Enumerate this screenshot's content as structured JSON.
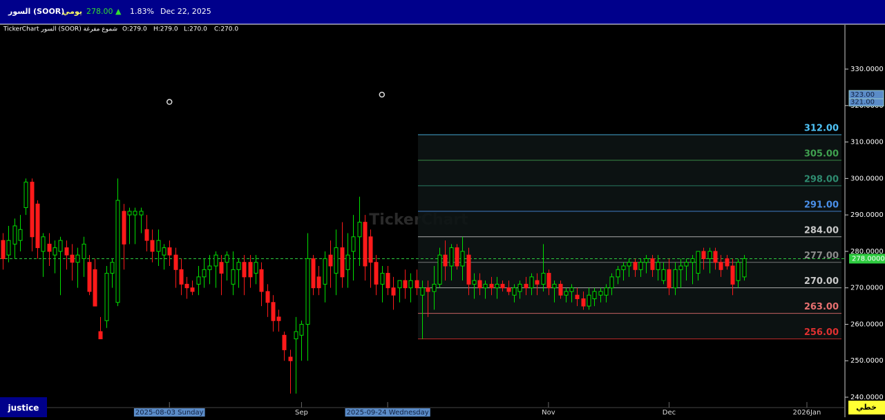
{
  "header": {
    "symbol": "السور (SOOR)",
    "period": "يومي",
    "price": "278.00",
    "change_icon": "▲",
    "change": "1.83%",
    "date": "Dec 22, 2025"
  },
  "legend": {
    "name": "TickerChart السور (SOOR) شموع مفرغة",
    "open": "O:279.0",
    "high": "H:279.0",
    "low": "L:270.0",
    "close": "C:270.0"
  },
  "toolbar": {
    "left": "justice",
    "right": "خطي"
  },
  "chart_data": {
    "type": "candlestick",
    "watermark": "TickerChart",
    "up_color": "#00e000",
    "down_color": "#ff1a1a",
    "ohlc": [
      [
        283,
        285,
        275,
        278
      ],
      [
        279,
        287,
        277,
        283
      ],
      [
        282,
        289,
        278,
        287
      ],
      [
        283,
        290,
        280,
        286
      ],
      [
        292,
        300,
        290,
        299
      ],
      [
        299,
        300,
        280,
        284
      ],
      [
        293,
        294,
        278,
        281
      ],
      [
        280,
        285,
        273,
        284
      ],
      [
        282,
        285,
        276,
        280
      ],
      [
        279,
        283,
        274,
        281
      ],
      [
        280,
        284,
        268,
        283
      ],
      [
        281,
        283,
        275,
        279
      ],
      [
        279,
        282,
        272,
        277
      ],
      [
        277,
        281,
        270,
        279
      ],
      [
        278,
        284,
        273,
        282
      ],
      [
        277,
        279,
        268,
        269
      ],
      [
        275,
        278,
        265,
        265
      ],
      [
        258,
        262,
        256,
        256
      ],
      [
        261,
        276,
        259,
        274
      ],
      [
        274,
        278,
        270,
        277
      ],
      [
        266,
        300,
        265,
        294
      ],
      [
        291,
        293,
        275,
        282
      ],
      [
        290,
        292,
        282,
        291
      ],
      [
        290,
        292,
        282,
        291
      ],
      [
        290,
        292,
        285,
        291
      ],
      [
        286,
        290,
        280,
        283
      ],
      [
        283,
        286,
        277,
        280
      ],
      [
        280,
        286,
        276,
        283
      ],
      [
        279,
        282,
        275,
        281
      ],
      [
        281,
        283,
        276,
        279
      ],
      [
        279,
        281,
        270,
        275
      ],
      [
        275,
        278,
        268,
        271
      ],
      [
        271,
        273,
        267,
        270
      ],
      [
        270,
        272,
        268,
        269
      ],
      [
        271,
        276,
        268,
        273
      ],
      [
        273,
        278,
        270,
        275
      ],
      [
        275,
        279,
        271,
        276
      ],
      [
        276,
        280,
        270,
        279
      ],
      [
        277,
        279,
        268,
        274
      ],
      [
        277,
        280,
        272,
        279
      ],
      [
        271,
        280,
        268,
        275
      ],
      [
        275,
        278,
        270,
        277
      ],
      [
        277,
        279,
        268,
        273
      ],
      [
        277,
        279,
        270,
        273
      ],
      [
        274,
        279,
        271,
        277
      ],
      [
        275,
        277,
        265,
        269
      ],
      [
        269,
        271,
        262,
        266
      ],
      [
        266,
        268,
        258,
        261
      ],
      [
        262,
        264,
        258,
        261
      ],
      [
        257,
        258,
        250,
        253
      ],
      [
        251,
        253,
        241,
        250
      ],
      [
        256,
        262,
        241,
        258
      ],
      [
        257,
        261,
        250,
        260
      ],
      [
        260,
        285,
        250,
        278
      ],
      [
        278,
        279,
        268,
        270
      ],
      [
        273,
        276,
        268,
        270
      ],
      [
        271,
        280,
        266,
        278
      ],
      [
        279,
        283,
        270,
        276
      ],
      [
        274,
        286,
        268,
        281
      ],
      [
        281,
        288,
        270,
        273
      ],
      [
        275,
        285,
        270,
        279
      ],
      [
        280,
        290,
        272,
        284
      ],
      [
        284,
        295,
        276,
        288
      ],
      [
        288,
        290,
        272,
        276
      ],
      [
        284,
        286,
        270,
        277
      ],
      [
        277,
        279,
        268,
        271
      ],
      [
        271,
        276,
        266,
        274
      ],
      [
        274,
        276,
        268,
        270
      ],
      [
        270,
        273,
        264,
        268
      ],
      [
        270,
        272,
        266,
        272
      ],
      [
        272,
        275,
        267,
        270
      ],
      [
        270,
        274,
        266,
        272
      ],
      [
        272,
        275,
        268,
        270
      ],
      [
        268,
        272,
        256,
        270
      ],
      [
        270,
        272,
        262,
        269
      ],
      [
        269,
        276,
        264,
        271
      ],
      [
        271,
        281,
        270,
        279
      ],
      [
        279,
        283,
        272,
        276
      ],
      [
        276,
        282,
        272,
        281
      ],
      [
        281,
        282,
        275,
        276
      ],
      [
        276,
        284,
        272,
        280
      ],
      [
        279,
        281,
        268,
        271
      ],
      [
        271,
        274,
        267,
        272
      ],
      [
        272,
        274,
        268,
        270
      ],
      [
        270,
        272,
        267,
        271
      ],
      [
        271,
        273,
        268,
        270
      ],
      [
        270,
        273,
        267,
        271
      ],
      [
        271,
        272,
        269,
        270
      ],
      [
        270,
        272,
        268,
        269
      ],
      [
        268,
        271,
        266,
        270
      ],
      [
        269,
        272,
        267,
        271
      ],
      [
        271,
        273,
        268,
        270
      ],
      [
        270,
        274,
        268,
        273
      ],
      [
        272,
        274,
        268,
        271
      ],
      [
        271,
        282,
        269,
        274
      ],
      [
        274,
        275,
        268,
        270
      ],
      [
        270,
        272,
        266,
        271
      ],
      [
        271,
        272,
        267,
        268
      ],
      [
        268,
        270,
        266,
        269
      ],
      [
        269,
        271,
        266,
        270
      ],
      [
        268,
        270,
        265,
        267
      ],
      [
        267,
        269,
        264,
        265
      ],
      [
        265,
        270,
        264,
        268
      ],
      [
        267,
        270,
        265,
        269
      ],
      [
        268,
        270,
        266,
        269
      ],
      [
        268,
        271,
        266,
        270
      ],
      [
        270,
        274,
        268,
        273
      ],
      [
        273,
        276,
        271,
        275
      ],
      [
        275,
        277,
        272,
        276
      ],
      [
        276,
        278,
        273,
        277
      ],
      [
        277,
        278,
        273,
        275
      ],
      [
        275,
        278,
        273,
        277
      ],
      [
        277,
        279,
        274,
        278
      ],
      [
        278,
        279,
        273,
        275
      ],
      [
        275,
        279,
        272,
        277
      ],
      [
        272,
        277,
        271,
        275
      ],
      [
        275,
        278,
        268,
        270
      ],
      [
        270,
        277,
        268,
        275
      ],
      [
        275,
        278,
        270,
        276
      ],
      [
        276,
        278,
        272,
        277
      ],
      [
        277,
        279,
        271,
        278
      ],
      [
        274,
        280,
        272,
        280
      ],
      [
        280,
        281,
        275,
        278
      ],
      [
        278,
        281,
        274,
        280
      ],
      [
        280,
        281,
        275,
        277
      ],
      [
        277,
        279,
        273,
        275
      ],
      [
        278,
        279,
        275,
        276
      ],
      [
        276,
        278,
        268,
        271
      ],
      [
        272,
        278,
        270,
        277
      ],
      [
        273,
        279,
        272,
        278
      ]
    ],
    "xlim": [
      -0.5,
      146.5
    ],
    "xticks": [
      {
        "value": 29,
        "label": "2025-08-03 Sunday",
        "highlight": true
      },
      {
        "value": 52,
        "label": "Sep"
      },
      {
        "value": 67,
        "label": "2025-09-24 Wednesday",
        "highlight": true
      },
      {
        "value": 95,
        "label": "Nov"
      },
      {
        "value": 116,
        "label": "Dec"
      },
      {
        "value": 140,
        "label": "2026Jan"
      }
    ],
    "ylim": [
      237.16,
      342.13
    ],
    "yticks": [
      {
        "value": 240,
        "label": "240.0000"
      },
      {
        "value": 250,
        "label": "250.0000"
      },
      {
        "value": 260,
        "label": "260.0000"
      },
      {
        "value": 270,
        "label": "270.0000"
      },
      {
        "value": 280,
        "label": "280.0000"
      },
      {
        "value": 290,
        "label": "290.0000"
      },
      {
        "value": 300,
        "label": "300.0000"
      },
      {
        "value": 310,
        "label": "310.0000"
      },
      {
        "value": 320,
        "label": "320.0000"
      },
      {
        "value": 330,
        "label": "330.0000"
      }
    ],
    "levels": [
      {
        "value": 312,
        "label": "312.00",
        "color": "#4fc3f7"
      },
      {
        "value": 305,
        "label": "305.00",
        "color": "#3fa04f"
      },
      {
        "value": 298,
        "label": "298.00",
        "color": "#2e8b6f"
      },
      {
        "value": 291,
        "label": "291.00",
        "color": "#4a8fe8"
      },
      {
        "value": 284,
        "label": "284.00",
        "color": "#c8c8c8"
      },
      {
        "value": 277,
        "label": "277.00",
        "color": "#8a8a8a"
      },
      {
        "value": 270,
        "label": "270.00",
        "color": "#c8c8c8"
      },
      {
        "value": 263,
        "label": "263.00",
        "color": "#e87070"
      },
      {
        "value": 256,
        "label": "256.00",
        "color": "#e03030"
      }
    ],
    "last_price": {
      "value": 278,
      "label": "278.0000",
      "color": "#2ecc40"
    },
    "markers": [
      {
        "x": 29,
        "value": 321,
        "label": "321.00"
      },
      {
        "x": 66,
        "value": 323,
        "label": "323.00"
      }
    ]
  }
}
